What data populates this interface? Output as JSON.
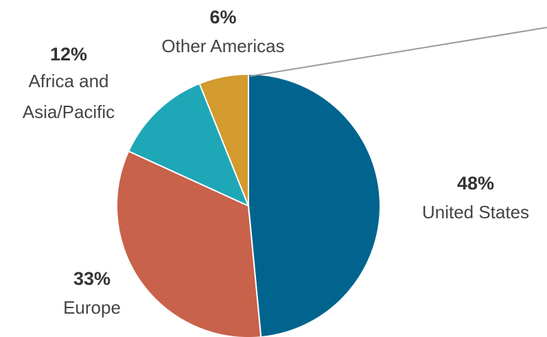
{
  "chart_data": {
    "type": "pie",
    "slices": [
      {
        "label": "United States",
        "value": 48,
        "value_text": "48%",
        "color": "#00648F"
      },
      {
        "label": "Europe",
        "value": 33,
        "value_text": "33%",
        "color": "#C8624A"
      },
      {
        "label": "Africa and Asia/Pacific",
        "label_lines": [
          "Africa and",
          "Asia/Pacific"
        ],
        "value": 12,
        "value_text": "12%",
        "color": "#1EA7B6"
      },
      {
        "label": "Other Americas",
        "value": 6,
        "value_text": "6%",
        "color": "#D39A2E"
      }
    ],
    "leader_line_color": "#9A9A9A",
    "legend": "none"
  }
}
